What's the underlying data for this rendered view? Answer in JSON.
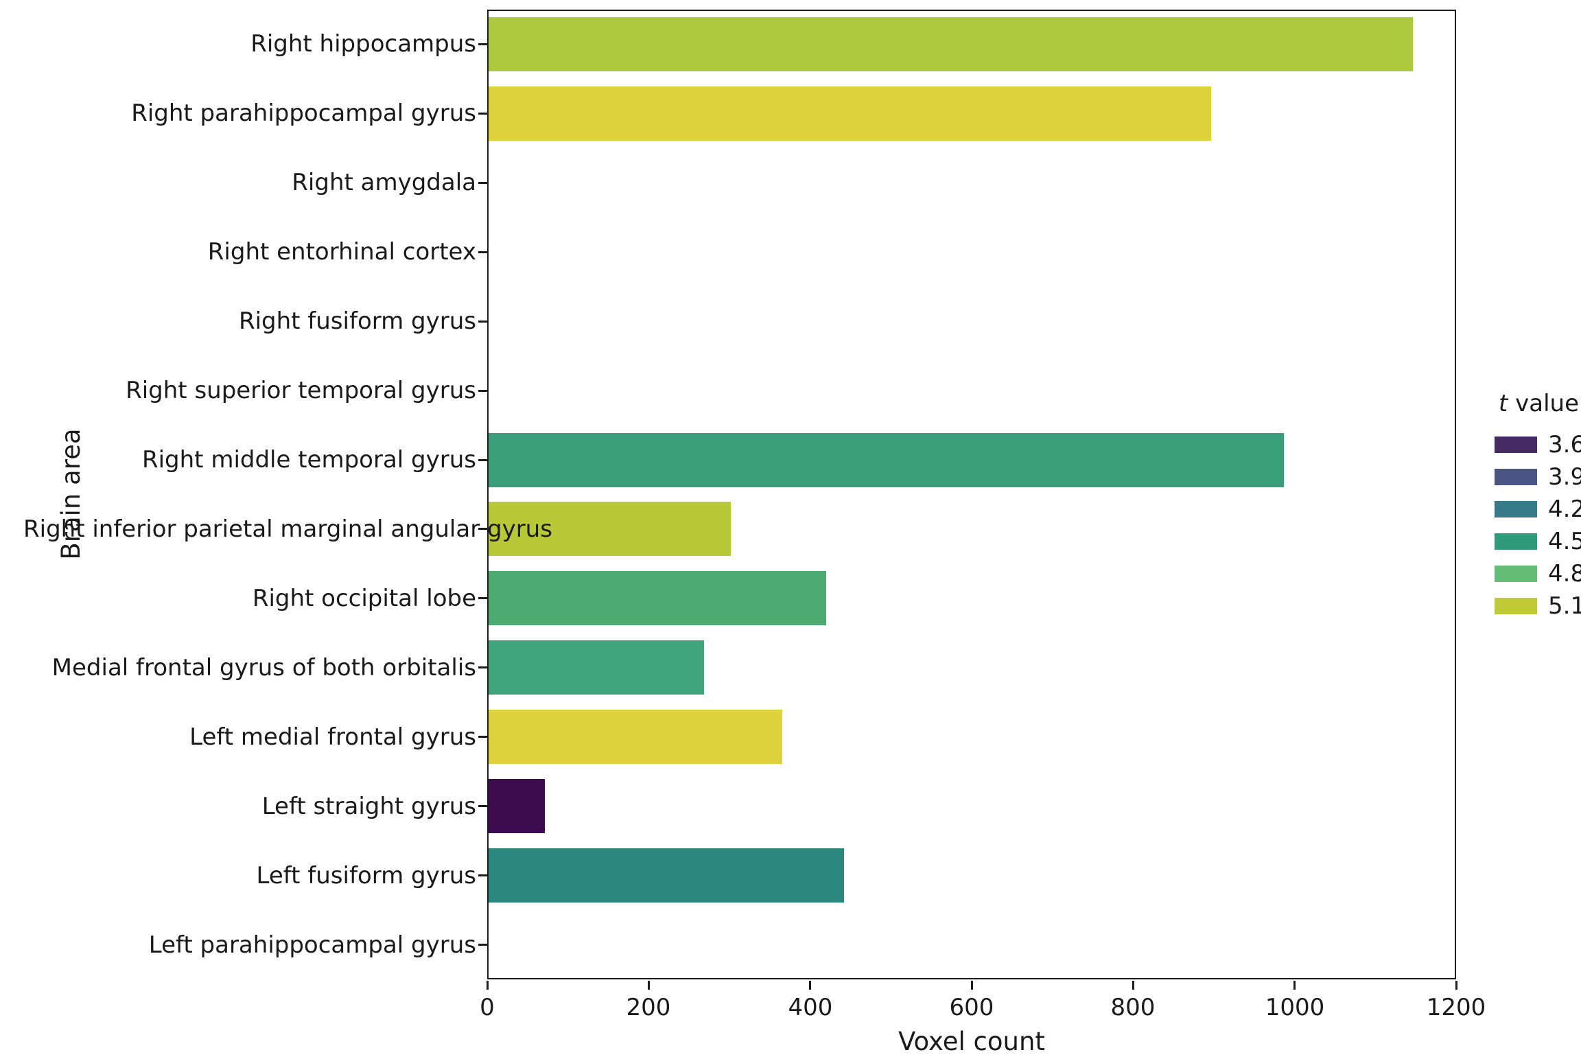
{
  "chart_data": {
    "type": "bar",
    "orientation": "horizontal",
    "title": "",
    "xlabel": "Voxel count",
    "ylabel": "Brain area",
    "xlim": [
      0,
      1200
    ],
    "x_ticks": [
      0,
      200,
      400,
      600,
      800,
      1000,
      1200
    ],
    "grid": false,
    "categories": [
      "Right hippocampus",
      "Right parahippocampal gyrus",
      "Right amygdala",
      "Right entorhinal cortex",
      "Right fusiform gyrus",
      "Right superior temporal gyrus",
      "Right middle temporal gyrus",
      "Right inferior parietal marginal angular gyrus",
      "Right occipital lobe",
      "Medial frontal gyrus of both orbitalis",
      "Left medial frontal gyrus",
      "Left straight gyrus",
      "Left fusiform gyrus",
      "Left parahippocampal gyrus"
    ],
    "values": [
      1145,
      895,
      0,
      0,
      0,
      0,
      985,
      300,
      418,
      267,
      364,
      70,
      440,
      0
    ],
    "bar_colors": [
      "#aec93e",
      "#ded33c",
      "#ffffff",
      "#ffffff",
      "#ffffff",
      "#ffffff",
      "#3a9e7b",
      "#b8c937",
      "#4dab72",
      "#40a47a",
      "#ded33c",
      "#3d0c4e",
      "#2c877e",
      "#ffffff"
    ],
    "legend": {
      "title_italic_part": "t",
      "title_rest": " value",
      "position": "right",
      "entries": [
        {
          "label": "3.6",
          "color": "#462a63"
        },
        {
          "label": "3.9",
          "color": "#4a5585"
        },
        {
          "label": "4.2",
          "color": "#36798a"
        },
        {
          "label": "4.5",
          "color": "#319a78"
        },
        {
          "label": "4.8",
          "color": "#64bd74"
        },
        {
          "label": "5.1",
          "color": "#bfca36"
        }
      ]
    },
    "axis_color": "#1c1c1c"
  }
}
